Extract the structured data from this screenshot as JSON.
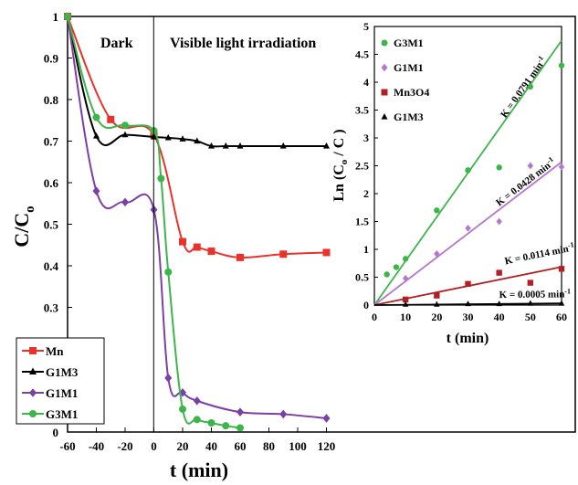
{
  "chart_data": [
    {
      "type": "line",
      "xlabel": "t (min)",
      "ylabel": "C/C",
      "ylabel_sub": "o",
      "xlim": [
        -60,
        120
      ],
      "ylim": [
        0,
        1
      ],
      "xticks": [
        "-60",
        "-40",
        "-20",
        "0",
        "20",
        "40",
        "60",
        "80",
        "100",
        "120"
      ],
      "yticks": [
        "0",
        "0.1",
        "0.2",
        "0.3",
        "0.4",
        "0.5",
        "0.6",
        "0.7",
        "0.8",
        "0.9",
        "1"
      ],
      "regions": [
        {
          "label": "Dark",
          "x": [
            -60,
            0
          ]
        },
        {
          "label": "Visible light irradiation",
          "x": [
            0,
            120
          ]
        }
      ],
      "legend_position": "bottom-left",
      "series": [
        {
          "name": "Mn",
          "color": "#e8322a",
          "marker": "square",
          "x": [
            -60,
            -30,
            0,
            20,
            30,
            40,
            60,
            90,
            120
          ],
          "y": [
            1.0,
            0.752,
            0.715,
            0.458,
            0.445,
            0.435,
            0.42,
            0.428,
            0.432
          ]
        },
        {
          "name": "G1M3",
          "color": "#000000",
          "marker": "triangle",
          "x": [
            -60,
            -40,
            -20,
            0,
            10,
            20,
            30,
            40,
            50,
            60,
            90,
            120
          ],
          "y": [
            1.0,
            0.712,
            0.715,
            0.71,
            0.708,
            0.705,
            0.7,
            0.688,
            0.688,
            0.688,
            0.688,
            0.688
          ]
        },
        {
          "name": "G1M1",
          "color": "#7b3fa6",
          "marker": "diamond",
          "x": [
            -60,
            -40,
            -20,
            0,
            10,
            20,
            30,
            60,
            90,
            120
          ],
          "y": [
            1.0,
            0.58,
            0.553,
            0.535,
            0.13,
            0.095,
            0.075,
            0.048,
            0.043,
            0.033
          ]
        },
        {
          "name": "G3M1",
          "color": "#3cb54a",
          "marker": "circle",
          "x": [
            -60,
            -40,
            -20,
            0,
            5,
            10,
            20,
            30,
            40,
            50,
            60
          ],
          "y": [
            1.0,
            0.757,
            0.738,
            0.725,
            0.61,
            0.385,
            0.055,
            0.03,
            0.022,
            0.015,
            0.01
          ]
        }
      ],
      "legend": [
        "Mn",
        "G1M3",
        "G1M1",
        "G3M1"
      ]
    },
    {
      "type": "scatter",
      "xlabel": "t (min)",
      "ylabel": "Ln (C",
      "ylabel_sub": "o",
      "ylabel_rest": " / C )",
      "xlim": [
        0,
        60
      ],
      "ylim": [
        0,
        5
      ],
      "xticks": [
        "0",
        "10",
        "20",
        "30",
        "40",
        "50",
        "60"
      ],
      "yticks": [
        "0",
        "0.5",
        "1",
        "1.5",
        "2",
        "2.5",
        "3",
        "3.5",
        "4",
        "4.5",
        "5"
      ],
      "legend_position": "top-left",
      "series": [
        {
          "name": "G3M1",
          "color": "#3cb54a",
          "marker": "circle",
          "x": [
            4,
            7,
            10,
            20,
            30,
            40,
            50,
            60
          ],
          "y": [
            0.55,
            0.68,
            0.83,
            1.7,
            2.42,
            2.47,
            3.92,
            4.3
          ],
          "fit_slope": 0.0791,
          "k_label": "K = 0.0791 min",
          "k_sup": "-1"
        },
        {
          "name": "G1M1",
          "color": "#b676cc",
          "marker": "diamond",
          "x": [
            10,
            20,
            30,
            40,
            50,
            60
          ],
          "y": [
            0.48,
            0.92,
            1.38,
            1.5,
            2.5,
            2.48
          ],
          "fit_slope": 0.0428,
          "k_label": "K = 0.0428 min",
          "k_sup": "-1"
        },
        {
          "name": "Mn3O4",
          "color": "#b21f24",
          "marker": "square",
          "x": [
            10,
            20,
            30,
            40,
            50,
            60
          ],
          "y": [
            0.1,
            0.17,
            0.38,
            0.58,
            0.4,
            0.65
          ],
          "fit_slope": 0.0114,
          "k_label": "K = 0.0114 min",
          "k_sup": "-1"
        },
        {
          "name": "G1M3",
          "color": "#000000",
          "marker": "triangle",
          "x": [
            10,
            20,
            30,
            40,
            50,
            60
          ],
          "y": [
            0.01,
            0.01,
            0.02,
            0.02,
            0.03,
            0.03
          ],
          "fit_slope": 0.0005,
          "k_label": "K = 0.0005 min",
          "k_sup": "-1"
        }
      ],
      "legend": [
        "G3M1",
        "G1M1",
        "Mn3O4",
        "G1M3"
      ]
    }
  ]
}
